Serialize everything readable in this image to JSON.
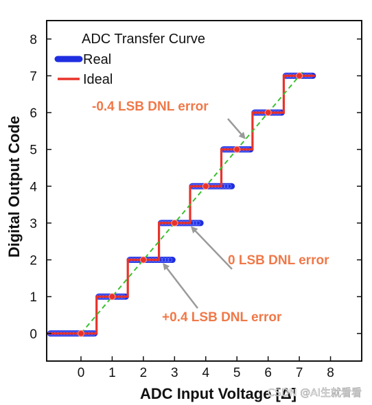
{
  "chart_data": {
    "type": "line",
    "title": "",
    "xlabel": "ADC Input Voltage  [Δ]",
    "ylabel": "Digital Output Code",
    "xlim": [
      -1.1,
      9.0
    ],
    "ylim": [
      -0.75,
      8.5
    ],
    "xticks": [
      0,
      1,
      2,
      3,
      4,
      5,
      6,
      7,
      8
    ],
    "yticks": [
      0,
      1,
      2,
      3,
      4,
      5,
      6,
      7,
      8
    ],
    "grid": false,
    "legend": {
      "title": "ADC Transfer Curve",
      "placement": "top-left",
      "entries": [
        "Real",
        "Ideal"
      ]
    },
    "colors": {
      "real": "#1f2ee0",
      "ideal": "#e8322a",
      "diagonal": "#39c12f",
      "arrow": "#9a9a9a",
      "annotation": "#f07848",
      "frame": "#111111"
    },
    "series": [
      {
        "name": "Real",
        "style": "markers",
        "segments": [
          {
            "code": 0,
            "x": [
              -1.05,
              0.5
            ]
          },
          {
            "code": 1,
            "x": [
              0.5,
              1.5
            ]
          },
          {
            "code": 2,
            "x": [
              1.5,
              3.0
            ]
          },
          {
            "code": 3,
            "x": [
              2.5,
              3.9
            ]
          },
          {
            "code": 4,
            "x": [
              3.5,
              4.9
            ]
          },
          {
            "code": 5,
            "x": [
              4.5,
              5.5
            ]
          },
          {
            "code": 6,
            "x": [
              5.5,
              6.5
            ]
          },
          {
            "code": 7,
            "x": [
              6.5,
              7.5
            ]
          }
        ]
      },
      {
        "name": "Ideal",
        "style": "step",
        "x": [
          -1.05,
          0.5,
          0.5,
          1.5,
          1.5,
          2.5,
          2.5,
          3.5,
          3.5,
          4.5,
          4.5,
          5.5,
          5.5,
          6.5,
          6.5,
          7.5
        ],
        "y": [
          0,
          0,
          1,
          1,
          2,
          2,
          3,
          3,
          4,
          4,
          5,
          5,
          6,
          6,
          7,
          7
        ],
        "code_centers": [
          0,
          1,
          2,
          3,
          4,
          5,
          6,
          7
        ]
      },
      {
        "style": "dashed",
        "x": [
          0,
          7.1
        ],
        "y": [
          0,
          7.1
        ]
      }
    ],
    "annotations": [
      {
        "text": "-0.4 LSB DNL error",
        "points_to": {
          "x": 5.25,
          "y": 5.25
        }
      },
      {
        "text": "0 LSB DNL error",
        "points_to": {
          "x": 3.55,
          "y": 3.0
        }
      },
      {
        "text": "+0.4 LSB DNL error",
        "points_to": {
          "x": 2.65,
          "y": 2.0
        }
      }
    ],
    "watermark": "CSDN @AI生就看看"
  }
}
